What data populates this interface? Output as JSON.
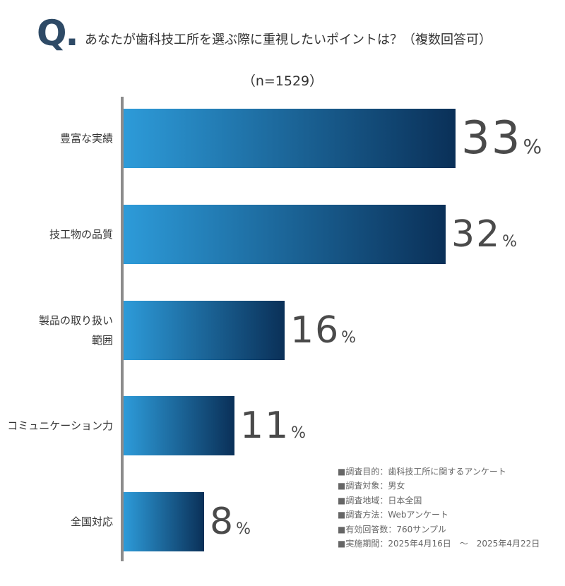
{
  "question": {
    "mark": "Q.",
    "text": "あなたが歯科技工所を選ぶ際に重視したいポイントは？（複数回答可）",
    "sample": "（n=1529）"
  },
  "chart_data": {
    "type": "bar",
    "orientation": "horizontal",
    "title": "あなたが歯科技工所を選ぶ際に重視したいポイントは？（複数回答可）",
    "subtitle": "（n=1529）",
    "categories": [
      "豊富な実績",
      "技工物の品質",
      "製品の取り扱い範囲",
      "コミュニケーション力",
      "全国対応"
    ],
    "category_lines": [
      [
        "豊富な実績"
      ],
      [
        "技工物の品質"
      ],
      [
        "製品の取り扱い",
        "範囲"
      ],
      [
        "コミュニケーション力"
      ],
      [
        "全国対応"
      ]
    ],
    "values": [
      33,
      32,
      16,
      11,
      8
    ],
    "value_labels": [
      "33",
      "32",
      "16",
      "11",
      "8"
    ],
    "unit": "%",
    "xlim": [
      0,
      100
    ],
    "gradient": [
      "#2d9bd9",
      "#0a3058"
    ]
  },
  "notes": [
    "■調査目的：歯科技工所に関するアンケート",
    "■調査対象：男女",
    "■調査地域：日本全国",
    "■調査方法：Webアンケート",
    "■有効回答数：760サンプル",
    "■実施期間：2025年4月16日　～　2025年4月22日"
  ]
}
